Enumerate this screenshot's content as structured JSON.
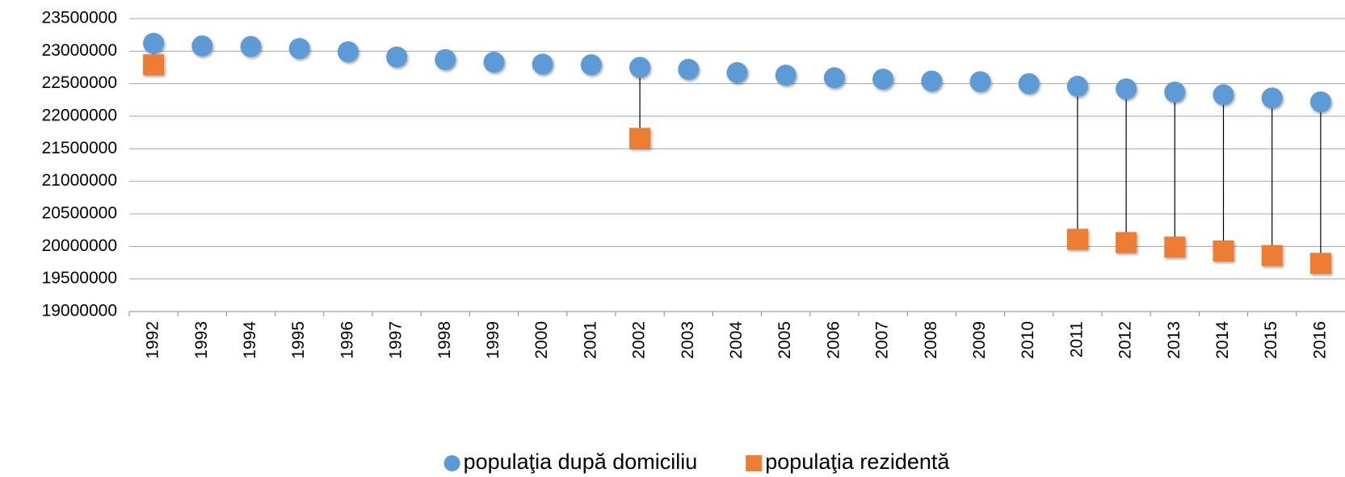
{
  "chart_data": {
    "type": "dot",
    "categories": [
      "1992",
      "1993",
      "1994",
      "1995",
      "1996",
      "1997",
      "1998",
      "1999",
      "2000",
      "2001",
      "2002",
      "2003",
      "2004",
      "2005",
      "2006",
      "2007",
      "2008",
      "2009",
      "2010",
      "2011",
      "2012",
      "2013",
      "2014",
      "2015",
      "2016"
    ],
    "series": [
      {
        "name": "populaţia după domiciliu",
        "color": "#5b9bd5",
        "marker": "circle",
        "values": [
          23120000,
          23080000,
          23070000,
          23040000,
          22990000,
          22910000,
          22870000,
          22830000,
          22800000,
          22790000,
          22750000,
          22720000,
          22670000,
          22630000,
          22590000,
          22570000,
          22540000,
          22530000,
          22500000,
          22460000,
          22420000,
          22370000,
          22330000,
          22280000,
          22220000
        ]
      },
      {
        "name": "populaţia rezidentă",
        "color": "#ed7d31",
        "marker": "square",
        "values": [
          22790000,
          null,
          null,
          null,
          null,
          null,
          null,
          null,
          null,
          null,
          21660000,
          null,
          null,
          null,
          null,
          null,
          null,
          null,
          null,
          20110000,
          20060000,
          19990000,
          19930000,
          19860000,
          19740000
        ]
      }
    ],
    "ylim": [
      19000000,
      23500000
    ],
    "yticks": [
      19000000,
      19500000,
      20000000,
      20500000,
      21000000,
      21500000,
      22000000,
      22500000,
      23000000,
      23500000
    ],
    "grid": true,
    "drop_lines": true,
    "legend": "bottom"
  }
}
